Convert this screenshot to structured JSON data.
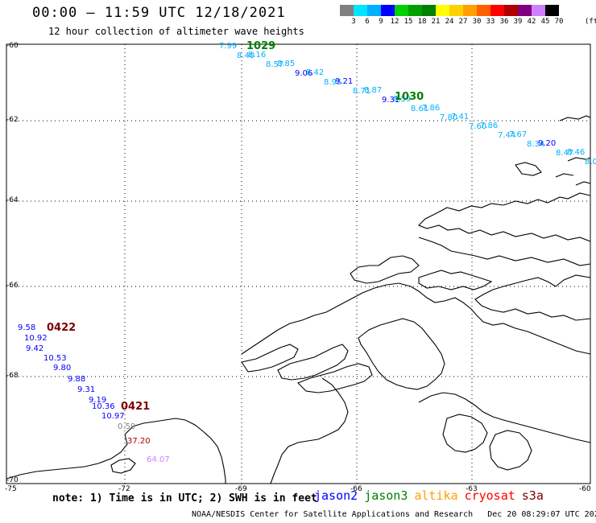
{
  "header": {
    "title": "00:00 – 11:59 UTC 12/18/2021",
    "subtitle": "12 hour collection of altimeter wave heights"
  },
  "colorbar": {
    "labels": [
      "3",
      "6",
      "9",
      "12",
      "15",
      "18",
      "21",
      "24",
      "27",
      "30",
      "33",
      "36",
      "39",
      "42",
      "45",
      "70"
    ],
    "unit": "(ft)",
    "colors": [
      "#808080",
      "#00e5ff",
      "#00b0ff",
      "#0000ff",
      "#00d000",
      "#00a000",
      "#008000",
      "#ffff00",
      "#ffd000",
      "#ffa000",
      "#ff6000",
      "#ff0000",
      "#b00000",
      "#800080",
      "#d080ff",
      "#000000"
    ]
  },
  "axes": {
    "lat_labels": [
      "-60",
      "-62",
      "-64",
      "-66",
      "-68",
      "-70"
    ],
    "lon_labels": [
      "-75",
      "-72",
      "-69",
      "-66",
      "-63",
      "-60"
    ]
  },
  "footer": {
    "note": "note: 1) Time is in UTC; 2) SWH is in feet",
    "credit": "NOAA/NESDIS Center for Satellite Applications and Research   Dec 20 08:29:07 UTC 2021",
    "satellites": [
      {
        "name": "jason2",
        "color": "#0000ff"
      },
      {
        "name": "jason3",
        "color": "#008000"
      },
      {
        "name": "altika",
        "color": "#ffa000"
      },
      {
        "name": "cryosat",
        "color": "#ff0000"
      },
      {
        "name": "s3a",
        "color": "#800000"
      }
    ]
  },
  "tracks": {
    "time_labels": [
      {
        "text": "1029",
        "color": "#008000"
      },
      {
        "text": "1030",
        "color": "#008000"
      },
      {
        "text": "0422",
        "color": "#800000"
      },
      {
        "text": "0421",
        "color": "#800000"
      }
    ],
    "north_track": [
      {
        "v": "7.99",
        "c": "#00b0ff"
      },
      {
        "v": "8.40",
        "c": "#00b0ff"
      },
      {
        "v": "8.16",
        "c": "#00b0ff"
      },
      {
        "v": "8.57",
        "c": "#00b0ff"
      },
      {
        "v": "8.85",
        "c": "#00b0ff"
      },
      {
        "v": "9.06",
        "c": "#0000ff"
      },
      {
        "v": "8.42",
        "c": "#00b0ff"
      },
      {
        "v": "8.95",
        "c": "#00b0ff"
      },
      {
        "v": "9.21",
        "c": "#0000ff"
      },
      {
        "v": "8.71",
        "c": "#00b0ff"
      },
      {
        "v": "8.87",
        "c": "#00b0ff"
      },
      {
        "v": "9.31",
        "c": "#0000ff"
      },
      {
        "v": "8.59",
        "c": "#00b0ff"
      },
      {
        "v": "8.61",
        "c": "#00b0ff"
      },
      {
        "v": "7.86",
        "c": "#00b0ff"
      },
      {
        "v": "7.80",
        "c": "#00b0ff"
      },
      {
        "v": "7.41",
        "c": "#00b0ff"
      },
      {
        "v": "7.60",
        "c": "#00b0ff"
      },
      {
        "v": "7.86",
        "c": "#00b0ff"
      },
      {
        "v": "7.44",
        "c": "#00b0ff"
      },
      {
        "v": "7.67",
        "c": "#00b0ff"
      },
      {
        "v": "8.34",
        "c": "#00b0ff"
      },
      {
        "v": "9.20",
        "c": "#0000ff"
      },
      {
        "v": "8.47",
        "c": "#00b0ff"
      },
      {
        "v": "8.46",
        "c": "#00b0ff"
      },
      {
        "v": "8.0",
        "c": "#00b0ff"
      }
    ],
    "west_track": [
      {
        "v": "9.58",
        "c": "#0000ff"
      },
      {
        "v": "10.92",
        "c": "#0000ff"
      },
      {
        "v": "9.42",
        "c": "#0000ff"
      },
      {
        "v": "10.53",
        "c": "#0000ff"
      },
      {
        "v": "9.80",
        "c": "#0000ff"
      },
      {
        "v": "9.88",
        "c": "#0000ff"
      },
      {
        "v": "9.31",
        "c": "#0000ff"
      },
      {
        "v": "9.19",
        "c": "#0000ff"
      },
      {
        "v": "10.36",
        "c": "#0000ff"
      },
      {
        "v": "10.97",
        "c": "#0000ff"
      },
      {
        "v": "0.59",
        "c": "#808080"
      },
      {
        "v": "37.20",
        "c": "#b00000"
      },
      {
        "v": "64.07",
        "c": "#d080ff"
      }
    ]
  }
}
